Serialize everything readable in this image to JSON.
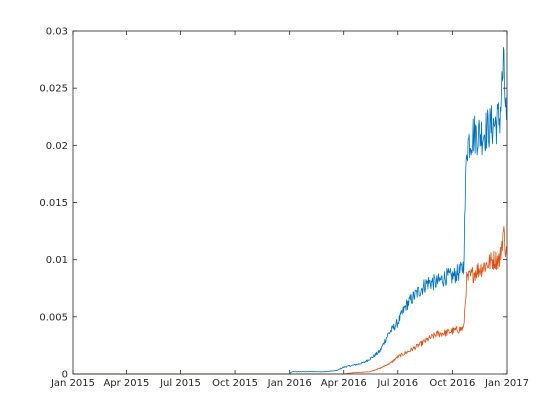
{
  "chart_data": {
    "type": "line",
    "title": "",
    "xlabel": "",
    "ylabel": "",
    "grid": false,
    "legend": "none",
    "x_range": [
      "2015-01-01",
      "2017-01-01"
    ],
    "ylim": [
      0,
      0.03
    ],
    "x_ticks": [
      {
        "date": "2015-01-01",
        "label": "Jan 2015"
      },
      {
        "date": "2015-04-01",
        "label": "Apr 2015"
      },
      {
        "date": "2015-07-01",
        "label": "Jul 2015"
      },
      {
        "date": "2015-10-01",
        "label": "Oct 2015"
      },
      {
        "date": "2016-01-01",
        "label": "Jan 2016"
      },
      {
        "date": "2016-04-01",
        "label": "Apr 2016"
      },
      {
        "date": "2016-07-01",
        "label": "Jul 2016"
      },
      {
        "date": "2016-10-01",
        "label": "Oct 2016"
      },
      {
        "date": "2017-01-01",
        "label": "Jan 2017"
      }
    ],
    "y_ticks": [
      {
        "value": 0,
        "label": "0"
      },
      {
        "value": 0.005,
        "label": "0.005"
      },
      {
        "value": 0.01,
        "label": "0.01"
      },
      {
        "value": 0.015,
        "label": "0.015"
      },
      {
        "value": 0.02,
        "label": "0.02"
      },
      {
        "value": 0.025,
        "label": "0.025"
      },
      {
        "value": 0.03,
        "label": "0.03"
      }
    ],
    "series": [
      {
        "color": "#0072bd",
        "points": [
          [
            "2015-01-01",
            0
          ],
          [
            "2015-12-31",
            0
          ],
          [
            "2016-01-05",
            0.0002
          ],
          [
            "2016-02-15",
            0.0002
          ],
          [
            "2016-03-01",
            0.0002
          ],
          [
            "2016-03-20",
            0.0003
          ],
          [
            "2016-04-01",
            0.0006
          ],
          [
            "2016-04-20",
            0.0008
          ],
          [
            "2016-05-05",
            0.001
          ],
          [
            "2016-05-20",
            0.0015
          ],
          [
            "2016-06-01",
            0.002
          ],
          [
            "2016-06-15",
            0.0035
          ],
          [
            "2016-07-01",
            0.0045
          ],
          [
            "2016-07-15",
            0.006
          ],
          [
            "2016-08-01",
            0.007
          ],
          [
            "2016-08-20",
            0.008
          ],
          [
            "2016-09-05",
            0.008
          ],
          [
            "2016-09-20",
            0.0085
          ],
          [
            "2016-10-01",
            0.0085
          ],
          [
            "2016-10-15",
            0.009
          ],
          [
            "2016-10-20",
            0.0095
          ],
          [
            "2016-10-25",
            0.02
          ],
          [
            "2016-11-05",
            0.021
          ],
          [
            "2016-11-20",
            0.021
          ],
          [
            "2016-12-01",
            0.0215
          ],
          [
            "2016-12-15",
            0.022
          ],
          [
            "2016-12-20",
            0.0225
          ],
          [
            "2016-12-26",
            0.027
          ],
          [
            "2016-12-31",
            0.022
          ]
        ]
      },
      {
        "color": "#d95319",
        "points": [
          [
            "2015-01-01",
            0
          ],
          [
            "2016-03-31",
            0
          ],
          [
            "2016-04-15",
            0.0001
          ],
          [
            "2016-05-15",
            0.0002
          ],
          [
            "2016-06-01",
            0.0005
          ],
          [
            "2016-06-20",
            0.001
          ],
          [
            "2016-07-01",
            0.0015
          ],
          [
            "2016-07-20",
            0.002
          ],
          [
            "2016-08-05",
            0.0025
          ],
          [
            "2016-08-20",
            0.003
          ],
          [
            "2016-09-05",
            0.0035
          ],
          [
            "2016-09-20",
            0.0036
          ],
          [
            "2016-10-05",
            0.0038
          ],
          [
            "2016-10-20",
            0.004
          ],
          [
            "2016-10-25",
            0.0082
          ],
          [
            "2016-11-10",
            0.009
          ],
          [
            "2016-11-25",
            0.0095
          ],
          [
            "2016-12-10",
            0.01
          ],
          [
            "2016-12-20",
            0.01
          ],
          [
            "2016-12-26",
            0.0125
          ],
          [
            "2016-12-31",
            0.0105
          ]
        ]
      }
    ]
  }
}
